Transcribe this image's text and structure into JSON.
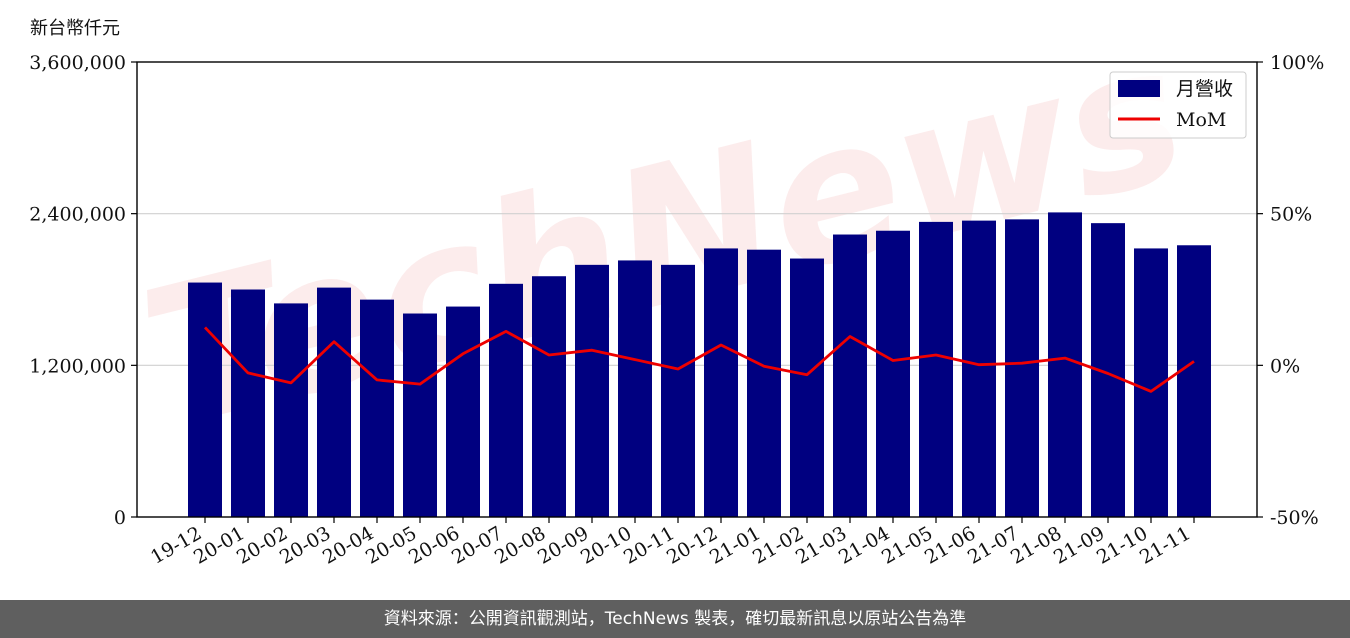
{
  "unit_label": "新台幣仟元",
  "footer_text": "資料來源：公開資訊觀測站，TechNews 製表，確切最新訊息以原站公告為準",
  "watermark_text": "TechNews",
  "colors": {
    "bar": "#000080",
    "line": "#ee0000",
    "grid": "#d0d0d0",
    "footer_bg": "#5f5f5f"
  },
  "chart_data": {
    "type": "bar",
    "categories": [
      "19-12",
      "20-01",
      "20-02",
      "20-03",
      "20-04",
      "20-05",
      "20-06",
      "20-07",
      "20-08",
      "20-09",
      "20-10",
      "20-11",
      "20-12",
      "21-01",
      "21-02",
      "21-03",
      "21-04",
      "21-05",
      "21-06",
      "21-07",
      "21-08",
      "21-09",
      "21-10",
      "21-11"
    ],
    "series": [
      {
        "name": "月營收",
        "axis": "left",
        "type": "bar",
        "values": [
          1855000,
          1800000,
          1690000,
          1815000,
          1720000,
          1610000,
          1665000,
          1845000,
          1905000,
          1995000,
          2030000,
          1995000,
          2125000,
          2115000,
          2045000,
          2235000,
          2265000,
          2335000,
          2345000,
          2355000,
          2410000,
          2325000,
          2125000,
          2150000
        ]
      },
      {
        "name": "MoM",
        "axis": "right",
        "type": "line",
        "values": [
          12.5,
          -2.5,
          -5.8,
          7.8,
          -4.8,
          -6.2,
          3.8,
          11.2,
          3.4,
          5.0,
          1.9,
          -1.2,
          6.7,
          -0.3,
          -3.1,
          9.5,
          1.6,
          3.4,
          0.2,
          0.7,
          2.4,
          -2.7,
          -8.6,
          1.3
        ]
      }
    ],
    "y_left": {
      "ylim": [
        0,
        3600000
      ],
      "ticks": [
        "0",
        "1,200,000",
        "2,400,000",
        "3,600,000"
      ]
    },
    "y_right": {
      "ylim": [
        -50,
        100
      ],
      "ticks": [
        "-50%",
        "0%",
        "50%",
        "100%"
      ]
    },
    "legend": {
      "placement": "top-right",
      "items": [
        "月營收",
        "MoM"
      ]
    },
    "grid": "horizontal"
  }
}
